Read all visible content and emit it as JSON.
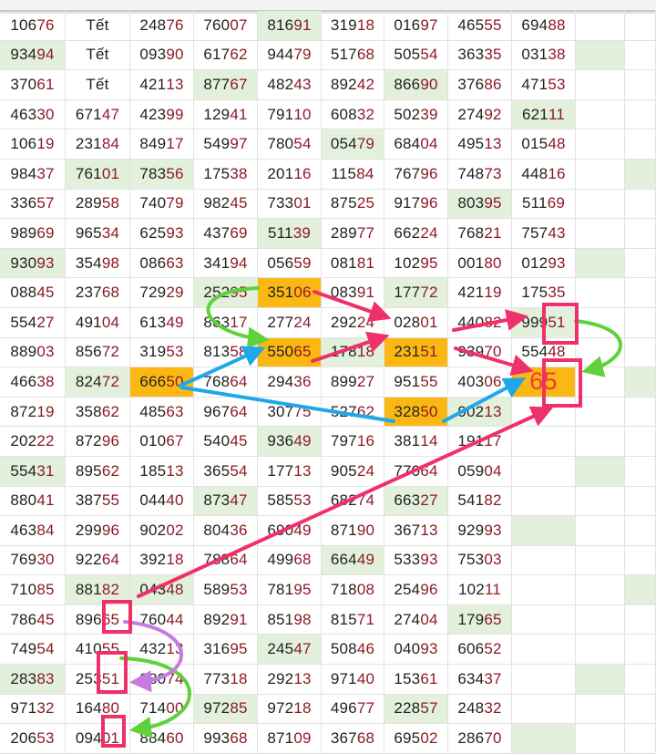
{
  "colors": {
    "highlight_green": "#e3f0dc",
    "highlight_orange": "#fbb813",
    "pink_arrow": "#f0306a",
    "green_arrow": "#5fd13a",
    "blue_arrow": "#1ea8ea",
    "purple_arrow": "#c77be0"
  },
  "rows": [
    [
      "10676",
      "Tết",
      "24876",
      "76007",
      "81691",
      "31918",
      "01697",
      "46555",
      "69488",
      "",
      ""
    ],
    [
      "93494",
      "Tết",
      "09390",
      "61762",
      "94479",
      "51768",
      "50554",
      "36335",
      "03138",
      "",
      ""
    ],
    [
      "37061",
      "Tết",
      "42113",
      "87767",
      "48243",
      "89242",
      "86690",
      "37686",
      "47153",
      "",
      ""
    ],
    [
      "46330",
      "67147",
      "42399",
      "12941",
      "79110",
      "60832",
      "50239",
      "27492",
      "62111",
      "",
      ""
    ],
    [
      "10619",
      "23184",
      "84917",
      "54997",
      "78054",
      "05479",
      "68404",
      "49513",
      "01548",
      "",
      ""
    ],
    [
      "98437",
      "76101",
      "78356",
      "17538",
      "20116",
      "11584",
      "76796",
      "74873",
      "44816",
      "",
      ""
    ],
    [
      "33657",
      "28958",
      "74079",
      "98245",
      "73301",
      "87525",
      "91796",
      "80395",
      "51169",
      "",
      ""
    ],
    [
      "98969",
      "96534",
      "62593",
      "43769",
      "51139",
      "28977",
      "66224",
      "76821",
      "75743",
      "",
      ""
    ],
    [
      "93093",
      "35498",
      "08663",
      "34194",
      "05659",
      "08181",
      "10295",
      "00180",
      "01293",
      "",
      ""
    ],
    [
      "08845",
      "23768",
      "72929",
      "25295",
      "35106",
      "08391",
      "17772",
      "42119",
      "17535",
      "",
      ""
    ],
    [
      "55427",
      "49104",
      "61349",
      "86317",
      "27724",
      "29224",
      "02801",
      "44082",
      "99951",
      "",
      ""
    ],
    [
      "88903",
      "85672",
      "31953",
      "81358",
      "55065",
      "17818",
      "23151",
      "93970",
      "55448",
      "",
      ""
    ],
    [
      "46638",
      "82472",
      "66650",
      "76864",
      "29436",
      "89927",
      "95155",
      "40306",
      "65",
      "",
      ""
    ],
    [
      "87219",
      "35862",
      "48563",
      "96764",
      "30775",
      "52762",
      "32850",
      "90213",
      "",
      "",
      ""
    ],
    [
      "20222",
      "87296",
      "01067",
      "54045",
      "93649",
      "79716",
      "38114",
      "19117",
      "",
      "",
      ""
    ],
    [
      "55431",
      "89562",
      "18513",
      "36554",
      "17713",
      "90524",
      "77064",
      "05904",
      "",
      "",
      ""
    ],
    [
      "88041",
      "38755",
      "04440",
      "87347",
      "58553",
      "68274",
      "66327",
      "54182",
      "",
      "",
      ""
    ],
    [
      "46384",
      "29996",
      "90202",
      "80436",
      "69049",
      "87190",
      "36713",
      "92993",
      "",
      "",
      ""
    ],
    [
      "76930",
      "92264",
      "39218",
      "78864",
      "49968",
      "66449",
      "53393",
      "75303",
      "",
      "",
      ""
    ],
    [
      "71085",
      "88182",
      "04348",
      "58953",
      "78195",
      "71808",
      "25496",
      "10211",
      "",
      "",
      ""
    ],
    [
      "78645",
      "89665",
      "76044",
      "89291",
      "85198",
      "81571",
      "27404",
      "17965",
      "",
      "",
      ""
    ],
    [
      "74954",
      "41055",
      "43213",
      "31695",
      "24547",
      "50846",
      "04093",
      "60652",
      "",
      "",
      ""
    ],
    [
      "28383",
      "25351",
      "88074",
      "77318",
      "29213",
      "97140",
      "15361",
      "63437",
      "",
      "",
      ""
    ],
    [
      "97132",
      "16480",
      "71400",
      "97285",
      "97218",
      "49677",
      "22857",
      "24832",
      "",
      "",
      ""
    ],
    [
      "20653",
      "09401",
      "88460",
      "99368",
      "87109",
      "36768",
      "69502",
      "28670",
      "",
      "",
      ""
    ]
  ]
}
